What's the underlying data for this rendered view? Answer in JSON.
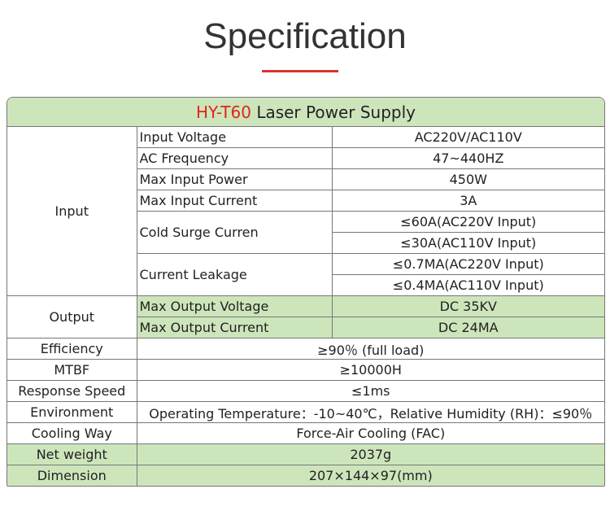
{
  "header": {
    "title": "Specification"
  },
  "table": {
    "model": "HY-T60",
    "title": "Laser Power Supply",
    "input": {
      "label": "Input",
      "rows": [
        {
          "name": "Input Voltage",
          "values": [
            "AC220V/AC110V"
          ]
        },
        {
          "name": "AC Frequency",
          "values": [
            "47~440HZ"
          ]
        },
        {
          "name": "Max Input Power",
          "values": [
            "450W"
          ]
        },
        {
          "name": "Max Input Current",
          "values": [
            "3A"
          ]
        },
        {
          "name": "Cold Surge Curren",
          "values": [
            "≤60A(AC220V Input)",
            "≤30A(AC110V Input)"
          ]
        },
        {
          "name": "Current Leakage",
          "values": [
            "≤0.7MA(AC220V Input)",
            "≤0.4MA(AC110V Input)"
          ]
        }
      ]
    },
    "output": {
      "label": "Output",
      "rows": [
        {
          "name": "Max Output Voltage",
          "value": "DC 35KV"
        },
        {
          "name": "Max Output Current",
          "value": "DC 24MA"
        }
      ]
    },
    "rows": [
      {
        "name": "Efficiency",
        "value": "≥90％ (full load)"
      },
      {
        "name": "MTBF",
        "value": "≥10000H"
      },
      {
        "name": "Response Speed",
        "value": "≤1ms"
      },
      {
        "name": "Environment",
        "value": "Operating Temperature：-10~40℃，Relative Humidity (RH)：≤90％"
      },
      {
        "name": "Cooling Way",
        "value": "Force-Air Cooling (FAC)"
      },
      {
        "name": "Net weight",
        "value": "2037g"
      },
      {
        "name": "Dimension",
        "value": "207×144×97(mm)"
      }
    ]
  }
}
